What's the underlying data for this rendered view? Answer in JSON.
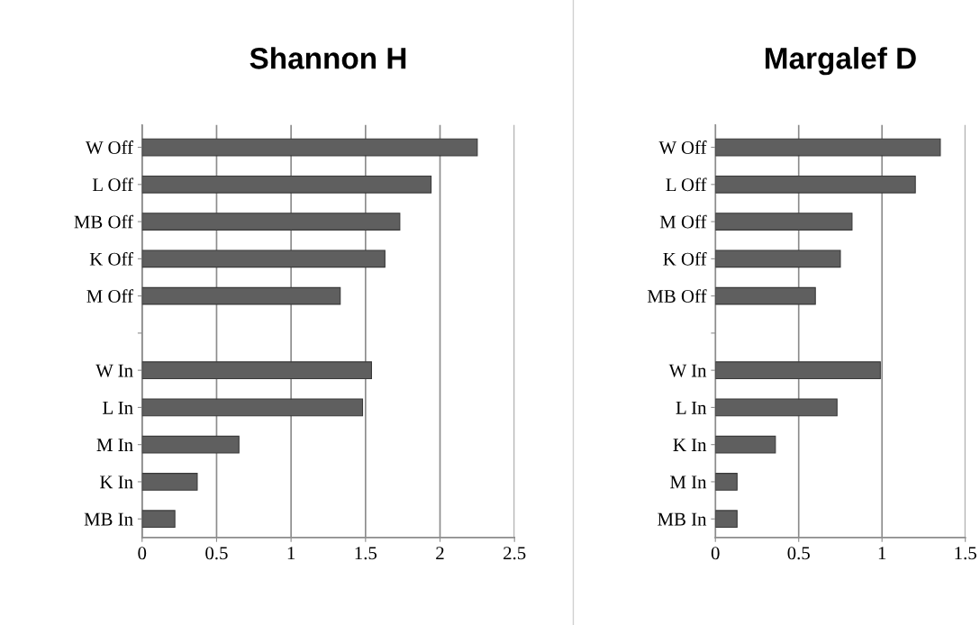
{
  "chart_data": [
    {
      "type": "bar",
      "orientation": "horizontal",
      "title": "Shannon H",
      "categories": [
        "W Off",
        "L Off",
        "MB Off",
        "K Off",
        "M Off",
        null,
        "W In",
        "L In",
        "M In",
        "K In",
        "MB In"
      ],
      "values": [
        2.25,
        1.94,
        1.73,
        1.63,
        1.33,
        null,
        1.54,
        1.48,
        0.65,
        0.37,
        0.22
      ],
      "color": "#5f5f5f",
      "xlim": [
        0,
        2.5
      ],
      "xticks": [
        0,
        0.5,
        1,
        1.5,
        2,
        2.5
      ],
      "grid": "x"
    },
    {
      "type": "bar",
      "orientation": "horizontal",
      "title": "Margalef D",
      "categories": [
        "W Off",
        "L Off",
        "M Off",
        "K Off",
        "MB Off",
        null,
        "W In",
        "L In",
        "K In",
        "M In",
        "MB In"
      ],
      "values": [
        1.35,
        1.2,
        0.82,
        0.75,
        0.6,
        null,
        0.99,
        0.73,
        0.36,
        0.13,
        0.13
      ],
      "color": "#5f5f5f",
      "xlim": [
        0,
        1.5
      ],
      "xticks": [
        0,
        0.5,
        1,
        1.5
      ],
      "grid": "x"
    }
  ]
}
